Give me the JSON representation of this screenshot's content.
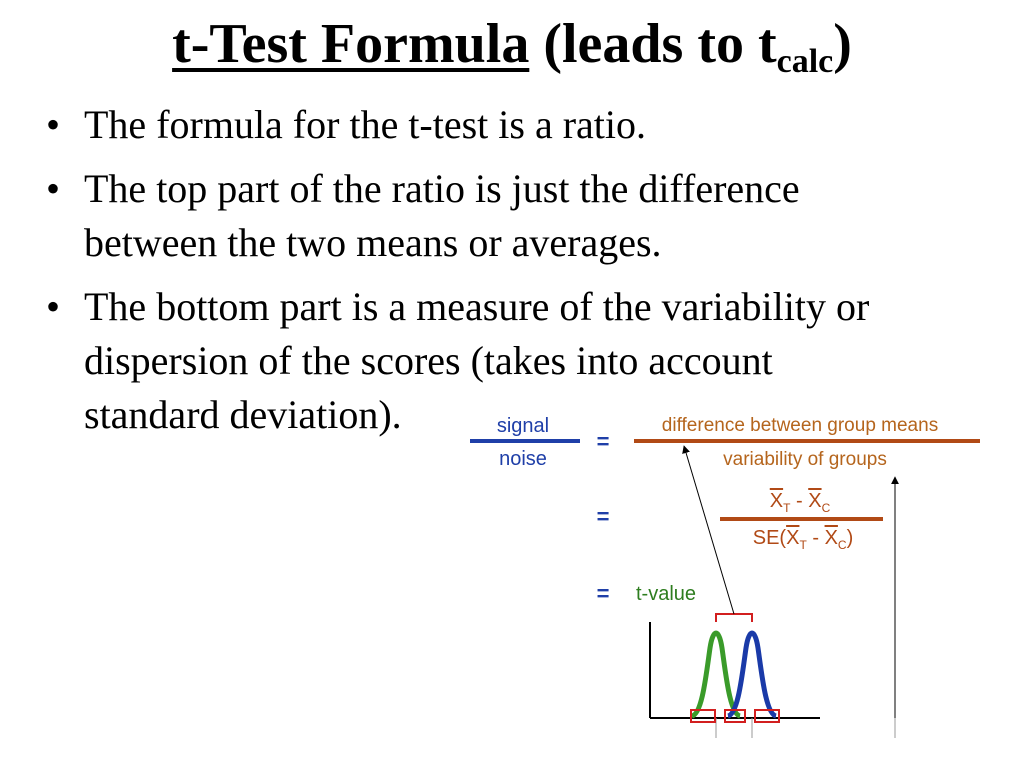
{
  "title": {
    "main": "t-Test Formula",
    "open": " (leads to t",
    "sub": "calc",
    "close": ")"
  },
  "bullets": [
    {
      "lines": [
        "The formula for the t-test is a ratio."
      ]
    },
    {
      "lines": [
        "The top part of the ratio is just the difference",
        "between the two means or averages."
      ]
    },
    {
      "lines": [
        "The bottom part is a measure of the variability or",
        "dispersion of the scores (takes into account",
        "standard deviation)."
      ]
    }
  ],
  "bullet_symbol": "•",
  "diagram": {
    "signal": "signal",
    "noise": "noise",
    "equals": "=",
    "numerator_text": "difference between group means",
    "denominator_text": "variability of groups",
    "xbar": "X",
    "sub_t": "T",
    "sub_c": "C",
    "minus": " - ",
    "se": "SE(",
    "close_paren": ")",
    "t_value": "t-value",
    "colors": {
      "blue": "#1f3fa8",
      "orange": "#b5651d",
      "rule": "#b14a16",
      "green": "#2e7d1f",
      "curve_green": "#3a9b2a",
      "curve_blue": "#1a3aa8",
      "marker": "#d21f1f",
      "arrow": "#000000"
    }
  }
}
